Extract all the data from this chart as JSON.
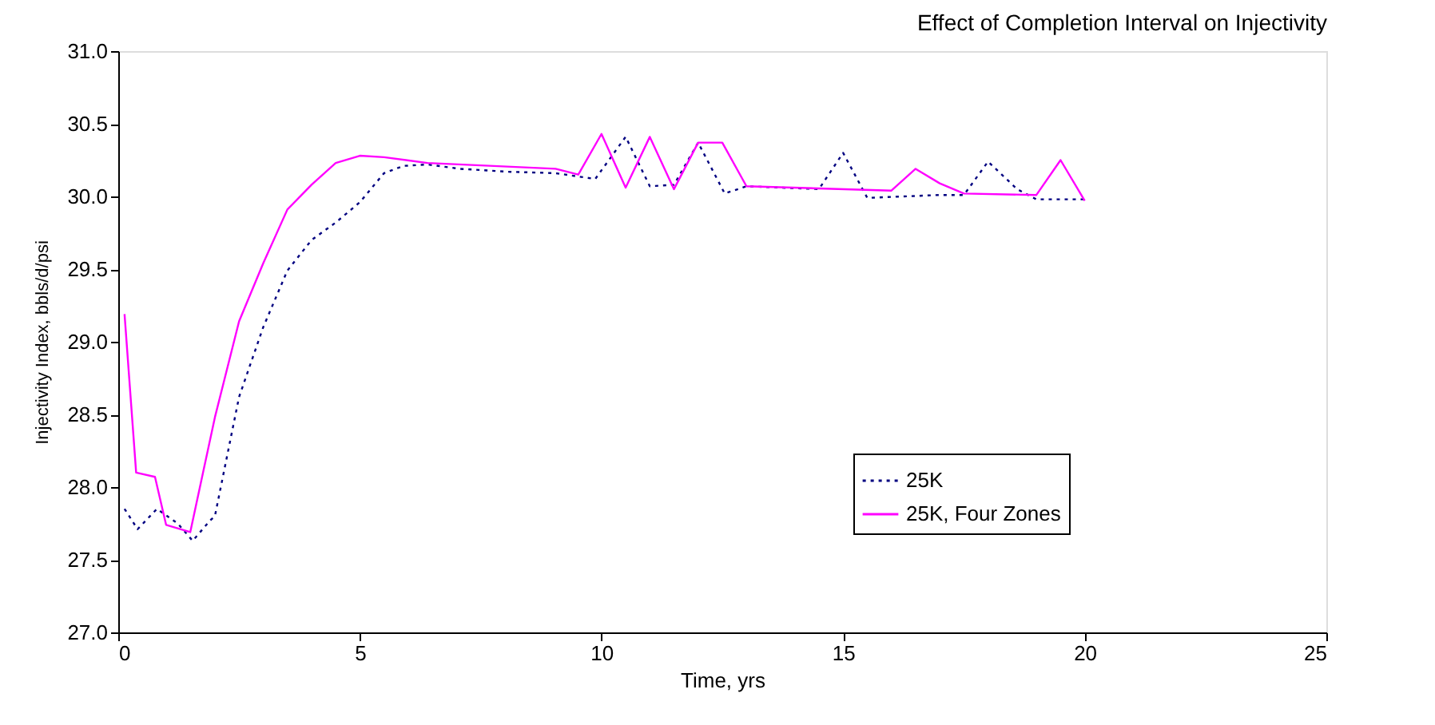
{
  "chart_data": {
    "type": "line",
    "title": "Effect of Completion Interval on Injectivity",
    "xlabel": "Time, yrs",
    "ylabel": "Injectivity Index, bbls/d/psi",
    "xlim": [
      0,
      25
    ],
    "xticks": [
      0,
      5,
      10,
      15,
      20,
      25
    ],
    "ylim": [
      27.0,
      31.0
    ],
    "yticks": [
      {
        "value": 27,
        "label": "27.0"
      },
      {
        "value": 27.5,
        "label": "27.5"
      },
      {
        "value": 28,
        "label": "28.0"
      },
      {
        "value": 28.5,
        "label": "28.5"
      },
      {
        "value": 29,
        "label": "29.0"
      },
      {
        "value": 29.5,
        "label": "29.5"
      },
      {
        "value": 30,
        "label": "30.0"
      },
      {
        "value": 30.5,
        "label": "30.5"
      },
      {
        "value": 31,
        "label": "31.0"
      }
    ],
    "grid": false,
    "legend": "bottom right",
    "marker": "none",
    "series": [
      {
        "name": "25K",
        "color": "#000080",
        "line_style": "dotted",
        "x": [
          0.13,
          0.4,
          0.8,
          1.23,
          1.54,
          1.9,
          2.0,
          2.5,
          3.0,
          3.5,
          4.0,
          4.5,
          5.0,
          5.5,
          5.9,
          6.4,
          7.07,
          8.06,
          9.05,
          9.87,
          10.5,
          11.0,
          11.5,
          12.0,
          12.55,
          13.0,
          14.5,
          15.0,
          15.5,
          17.0,
          17.5,
          18.0,
          18.6,
          19.0,
          20.0
        ],
        "values": [
          27.85,
          27.71,
          27.85,
          27.75,
          27.63,
          27.77,
          27.8,
          28.62,
          29.1,
          29.49,
          29.7,
          29.82,
          29.96,
          30.16,
          30.21,
          30.22,
          30.19,
          30.17,
          30.16,
          30.12,
          30.41,
          30.07,
          30.08,
          30.37,
          30.02,
          30.07,
          30.05,
          30.3,
          29.99,
          30.01,
          30.01,
          30.24,
          30.05,
          29.98,
          29.98
        ]
      },
      {
        "name": "25K, Four Zones",
        "color": "#ff00ff",
        "line_style": "solid",
        "x": [
          0.13,
          0.37,
          0.76,
          0.99,
          1.49,
          2.0,
          2.5,
          3.0,
          3.5,
          4.0,
          4.5,
          5.0,
          5.5,
          6.4,
          9.05,
          9.52,
          10.0,
          10.5,
          11.0,
          11.5,
          12.0,
          12.5,
          13.0,
          16.0,
          16.5,
          17.0,
          17.5,
          19.0,
          19.5,
          20.0
        ],
        "values": [
          29.19,
          28.1,
          28.07,
          27.74,
          27.69,
          28.48,
          29.14,
          29.54,
          29.91,
          30.08,
          30.23,
          30.28,
          30.27,
          30.23,
          30.19,
          30.15,
          30.43,
          30.06,
          30.41,
          30.05,
          30.37,
          30.37,
          30.07,
          30.04,
          30.19,
          30.09,
          30.02,
          30.01,
          30.25,
          29.97
        ]
      }
    ]
  }
}
